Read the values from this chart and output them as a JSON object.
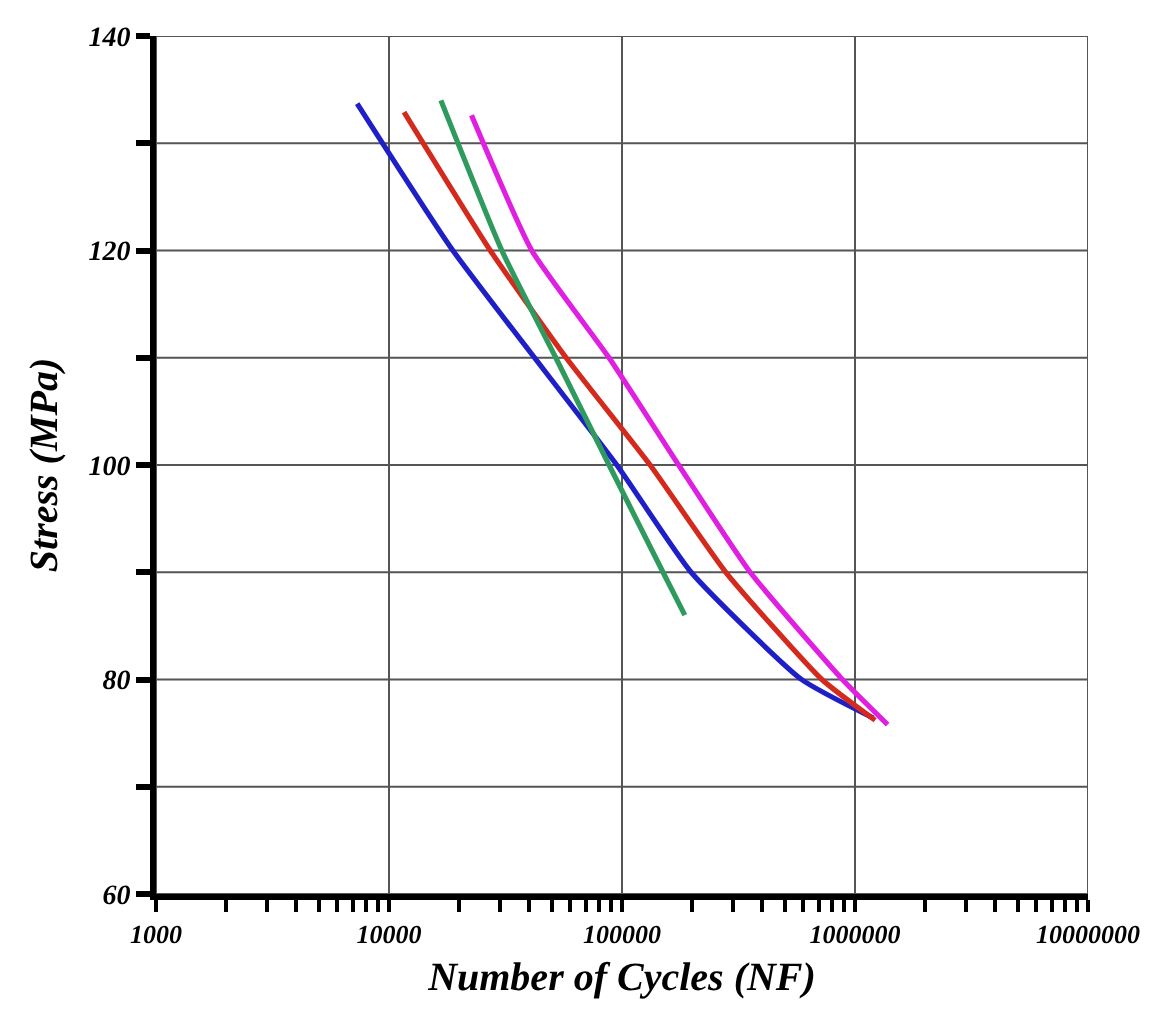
{
  "chart_data": {
    "type": "line",
    "xlabel": "Number of Cycles (NF)",
    "ylabel": "Stress (MPa)",
    "log": "x",
    "grid": true,
    "marker": "none",
    "line_style": "solid",
    "xlim": [
      1000,
      10000000
    ],
    "ylim": [
      60,
      140
    ],
    "xticks": [
      1000,
      {
        "value": 2000,
        "label": null
      },
      {
        "value": 3000,
        "label": null
      },
      {
        "value": 4000,
        "label": null
      },
      {
        "value": 5000,
        "label": null
      },
      {
        "value": 6000,
        "label": null
      },
      {
        "value": 7000,
        "label": null
      },
      {
        "value": 8000,
        "label": null
      },
      {
        "value": 9000,
        "label": null
      },
      10000,
      {
        "value": 20000,
        "label": null
      },
      {
        "value": 30000,
        "label": null
      },
      {
        "value": 40000,
        "label": null
      },
      {
        "value": 50000,
        "label": null
      },
      {
        "value": 60000,
        "label": null
      },
      {
        "value": 70000,
        "label": null
      },
      {
        "value": 80000,
        "label": null
      },
      {
        "value": 90000,
        "label": null
      },
      100000,
      {
        "value": 200000,
        "label": null
      },
      {
        "value": 300000,
        "label": null
      },
      {
        "value": 400000,
        "label": null
      },
      {
        "value": 500000,
        "label": null
      },
      {
        "value": 600000,
        "label": null
      },
      {
        "value": 700000,
        "label": null
      },
      {
        "value": 800000,
        "label": null
      },
      {
        "value": 900000,
        "label": null
      },
      1000000,
      {
        "value": 2000000,
        "label": null
      },
      {
        "value": 3000000,
        "label": null
      },
      {
        "value": 4000000,
        "label": null
      },
      {
        "value": 5000000,
        "label": null
      },
      {
        "value": 6000000,
        "label": null
      },
      {
        "value": 7000000,
        "label": null
      },
      {
        "value": 8000000,
        "label": null
      },
      {
        "value": 9000000,
        "label": null
      },
      10000000
    ],
    "yticks": [
      60,
      {
        "value": 70,
        "label": null
      },
      80,
      {
        "value": 90,
        "label": null
      },
      100,
      {
        "value": 110,
        "label": null
      },
      120,
      {
        "value": 130,
        "label": null
      },
      140
    ],
    "series": [
      {
        "color": "#1f1fc8",
        "x": [
          7300,
          18800,
          95000,
          198000,
          590000,
          1200000
        ],
        "values": [
          133.7,
          120,
          100,
          90,
          80,
          76.4
        ]
      },
      {
        "color": "#d42a1e",
        "x": [
          11600,
          27200,
          57600,
          132000,
          279000,
          721000,
          1220000
        ],
        "values": [
          132.9,
          120,
          110,
          100,
          90,
          80,
          76.2
        ]
      },
      {
        "color": "#2e9a5e",
        "x": [
          16700,
          30500,
          52000,
          88000,
          150000,
          186000
        ],
        "values": [
          134,
          120,
          110,
          100,
          90,
          86
        ]
      },
      {
        "color": "#e020e0",
        "x": [
          22600,
          41000,
          88000,
          175000,
          355000,
          883000,
          1380000
        ],
        "values": [
          132.6,
          120,
          110,
          100,
          90,
          80,
          75.8
        ]
      }
    ]
  }
}
